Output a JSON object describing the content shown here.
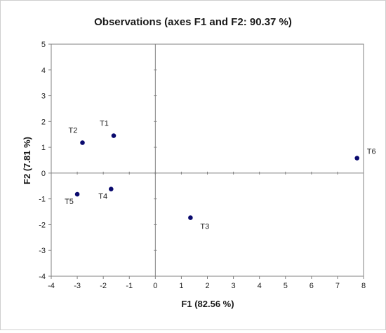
{
  "chart_data": {
    "type": "scatter",
    "title": "Observations (axes F1 and F2: 90.37 %)",
    "xlabel": "F1 (82.56 %)",
    "ylabel": "F2 (7.81 %)",
    "xlim": [
      -4,
      8
    ],
    "ylim": [
      -4,
      5
    ],
    "xticks": [
      -4,
      -3,
      -2,
      -1,
      0,
      1,
      2,
      3,
      4,
      5,
      6,
      7,
      8
    ],
    "yticks": [
      5,
      4,
      3,
      2,
      1,
      0,
      -1,
      -2,
      -3,
      -4
    ],
    "grid": false,
    "legend": "none",
    "marker_color": "#0a0a6e",
    "points": [
      {
        "label": "T1",
        "x": -1.6,
        "y": 1.45,
        "label_pos": "above-left"
      },
      {
        "label": "T2",
        "x": -2.8,
        "y": 1.18,
        "label_pos": "above-left"
      },
      {
        "label": "T3",
        "x": 1.35,
        "y": -1.73,
        "label_pos": "below-right"
      },
      {
        "label": "T4",
        "x": -1.7,
        "y": -0.62,
        "label_pos": "below-left"
      },
      {
        "label": "T5",
        "x": -3.0,
        "y": -0.82,
        "label_pos": "below-left"
      },
      {
        "label": "T6",
        "x": 7.75,
        "y": 0.58,
        "label_pos": "above-right"
      }
    ]
  }
}
